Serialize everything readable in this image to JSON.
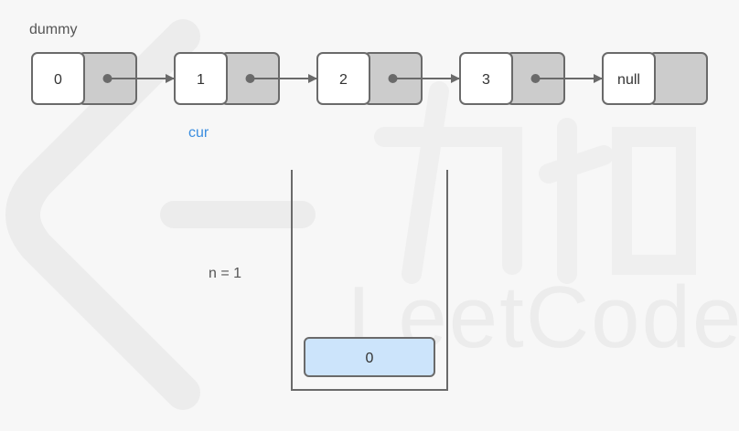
{
  "labels": {
    "dummy": "dummy",
    "cur": "cur",
    "n": "n = 1"
  },
  "nodes": [
    "0",
    "1",
    "2",
    "3",
    "null"
  ],
  "stack": {
    "items": [
      "0"
    ]
  },
  "watermark": {
    "text": "LeetCode"
  },
  "colors": {
    "background": "#f7f7f7",
    "node_value_fill": "#ffffff",
    "node_pointer_fill": "#cccccc",
    "node_border": "#6a6a6a",
    "arrow": "#6a6a6a",
    "cur_label": "#3b8ee0",
    "stack_item_fill": "#cce4fb",
    "stack_item_border": "#6a6a6a",
    "text": "#333333",
    "muted_text": "#555555",
    "watermark": "#ececec"
  }
}
